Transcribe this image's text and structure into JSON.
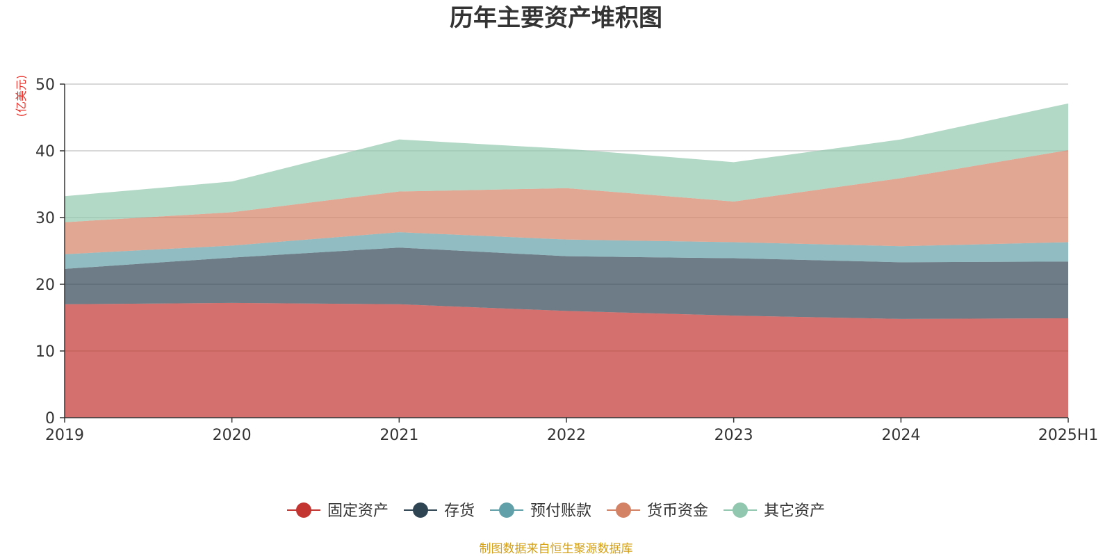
{
  "chart_data": {
    "type": "area",
    "stacked": true,
    "title": "历年主要资产堆积图",
    "y_unit": "(亿美元)",
    "x": [
      "2019",
      "2020",
      "2021",
      "2022",
      "2023",
      "2024",
      "2025H1"
    ],
    "ylim": [
      0,
      50
    ],
    "y_ticks": [
      0,
      10,
      20,
      30,
      40,
      50
    ],
    "grid": true,
    "legend_position": "bottom-center",
    "series": [
      {
        "name": "固定资产",
        "color": "#c23531",
        "values": [
          17.0,
          17.2,
          17.0,
          16.0,
          15.3,
          14.8,
          14.9
        ]
      },
      {
        "name": "存货",
        "color": "#2f4554",
        "values": [
          5.3,
          6.8,
          8.5,
          8.2,
          8.6,
          8.5,
          8.5
        ]
      },
      {
        "name": "预付账款",
        "color": "#61a0a8",
        "values": [
          2.2,
          1.8,
          2.3,
          2.5,
          2.4,
          2.4,
          2.9
        ]
      },
      {
        "name": "货币资金",
        "color": "#d48265",
        "values": [
          4.8,
          5.0,
          6.1,
          7.7,
          6.1,
          10.2,
          13.8
        ]
      },
      {
        "name": "其它资产",
        "color": "#91c7ae",
        "values": [
          3.9,
          4.6,
          7.8,
          5.9,
          5.9,
          5.8,
          7.0
        ]
      }
    ]
  },
  "footer": {
    "source": "制图数据来自恒生聚源数据库"
  }
}
